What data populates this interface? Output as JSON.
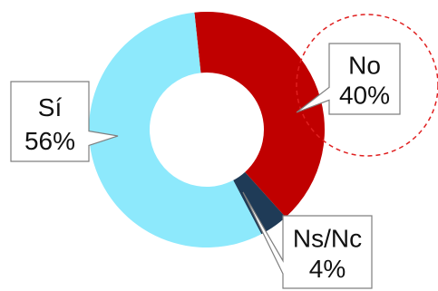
{
  "chart_data": {
    "type": "pie",
    "donut": true,
    "title": "",
    "slices": [
      {
        "label": "No",
        "value": 40,
        "value_label": "40%",
        "color": "#C00000"
      },
      {
        "label": "Ns/Nc",
        "value": 4,
        "value_label": "4%",
        "color": "#1F3B57"
      },
      {
        "label": "Sí",
        "value": 56,
        "value_label": "56%",
        "color": "#8DE9FC"
      }
    ],
    "highlight": {
      "slice": "No",
      "style": "dashed-circle",
      "color": "#E02020"
    }
  }
}
